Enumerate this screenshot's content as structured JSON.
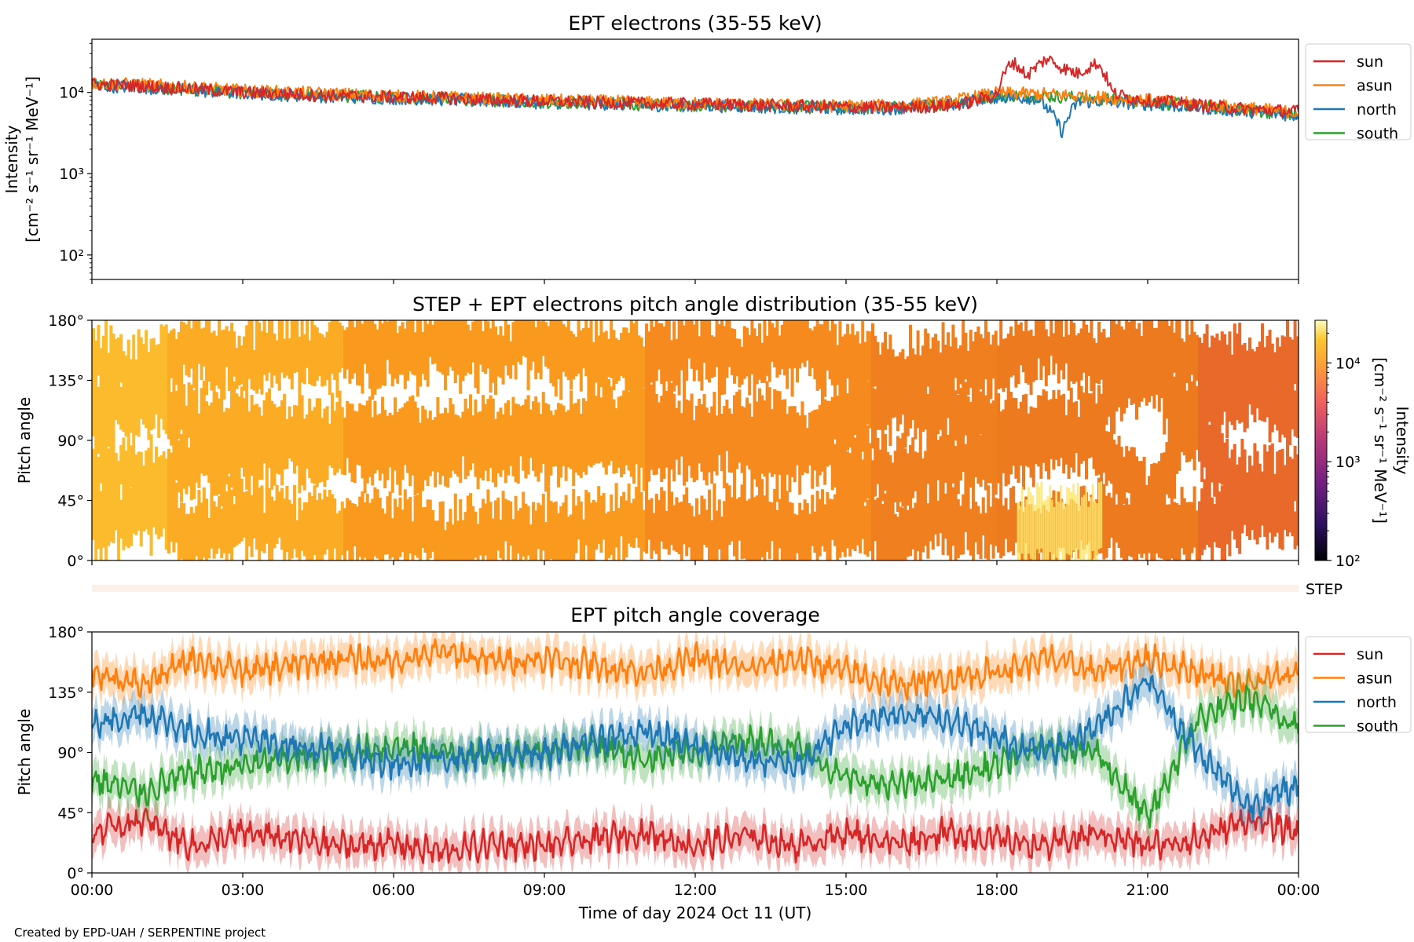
{
  "footer": "Created by EPD-UAH / SERPENTINE project",
  "colors": {
    "sun": "#d62728",
    "asun": "#ff7f0e",
    "north": "#1f77b4",
    "south": "#2ca02c"
  },
  "chart_data": [
    {
      "type": "line",
      "title": "EPT electrons (35-55 keV)",
      "ylabel_line1": "Intensity",
      "ylabel_line2": "[cm⁻² s⁻¹ sr⁻¹ MeV⁻¹]",
      "yscale": "log",
      "ylim": [
        50,
        45000
      ],
      "yticks": [
        {
          "value": 100,
          "label": "10²"
        },
        {
          "value": 1000,
          "label": "10³"
        },
        {
          "value": 10000,
          "label": "10⁴"
        }
      ],
      "xlim_hours": [
        0,
        24
      ],
      "legend": {
        "placement": "outside-right",
        "entries": [
          "sun",
          "asun",
          "north",
          "south"
        ]
      },
      "series": [
        {
          "name": "sun",
          "color": "#d62728",
          "x_hours": [
            0,
            1,
            2,
            3,
            4,
            5,
            6,
            7,
            8,
            9,
            10,
            11,
            12,
            13,
            14,
            15,
            16,
            17,
            17.5,
            18,
            18.3,
            18.6,
            19,
            19.3,
            19.6,
            20,
            20.3,
            20.6,
            21,
            22,
            23,
            24
          ],
          "y": [
            12500,
            12000,
            11000,
            10000,
            9500,
            9000,
            8800,
            8500,
            8000,
            7800,
            7500,
            7300,
            7200,
            7000,
            6800,
            6600,
            6500,
            6800,
            7600,
            9500,
            24000,
            16000,
            26000,
            20000,
            17000,
            23000,
            9800,
            8700,
            8000,
            7000,
            6200,
            5800
          ]
        },
        {
          "name": "asun",
          "color": "#ff7f0e",
          "x_hours": [
            0,
            1,
            2,
            3,
            4,
            5,
            6,
            7,
            8,
            9,
            10,
            11,
            12,
            13,
            14,
            15,
            16,
            17,
            18,
            19,
            20,
            21,
            22,
            23,
            24
          ],
          "y": [
            13000,
            12500,
            11500,
            10500,
            10000,
            9500,
            9000,
            8700,
            8300,
            8000,
            7800,
            7500,
            7300,
            7100,
            6900,
            6800,
            6900,
            7600,
            9800,
            9500,
            8700,
            8000,
            7200,
            6400,
            5600
          ]
        },
        {
          "name": "north",
          "color": "#1f77b4",
          "x_hours": [
            0,
            1,
            2,
            3,
            4,
            5,
            6,
            7,
            8,
            9,
            10,
            11,
            12,
            13,
            14,
            15,
            16,
            17,
            18,
            18.8,
            19.3,
            19.6,
            20,
            21,
            22,
            23,
            24
          ],
          "y": [
            12000,
            11500,
            10500,
            9800,
            9200,
            8800,
            8500,
            8200,
            7800,
            7500,
            7300,
            7000,
            6900,
            6700,
            6500,
            6300,
            6400,
            7000,
            8800,
            8500,
            3200,
            7500,
            7800,
            7200,
            6500,
            5800,
            5200
          ]
        },
        {
          "name": "south",
          "color": "#2ca02c",
          "x_hours": [
            0,
            1,
            2,
            3,
            4,
            5,
            6,
            7,
            8,
            9,
            10,
            11,
            12,
            13,
            14,
            15,
            16,
            17,
            18,
            19,
            20,
            21,
            22,
            23,
            24
          ],
          "y": [
            12200,
            11800,
            10800,
            10000,
            9400,
            9000,
            8600,
            8300,
            7900,
            7600,
            7400,
            7100,
            7000,
            6800,
            6600,
            6400,
            6500,
            7200,
            9200,
            9000,
            8400,
            7600,
            6800,
            6000,
            5300
          ]
        }
      ]
    },
    {
      "type": "heatmap",
      "title": "STEP + EPT electrons pitch angle distribution (35-55 keV)",
      "ylabel": "Pitch angle",
      "yticks": [
        "0°",
        "45°",
        "90°",
        "135°",
        "180°"
      ],
      "ylim_deg": [
        0,
        180
      ],
      "xlim_hours": [
        0,
        24
      ],
      "colorbar": {
        "label": "Intensity",
        "units": "[cm⁻² s⁻¹ sr⁻¹ MeV⁻¹]",
        "scale": "log",
        "range": [
          100,
          27000
        ],
        "ticks": [
          {
            "value": 100,
            "label": "10²"
          },
          {
            "value": 1000,
            "label": "10³"
          },
          {
            "value": 10000,
            "label": "10⁴"
          }
        ]
      },
      "step_label": "STEP"
    },
    {
      "type": "line",
      "title": "EPT pitch angle coverage",
      "ylabel": "Pitch angle",
      "yticks": [
        "0°",
        "45°",
        "90°",
        "135°",
        "180°"
      ],
      "ylim_deg": [
        0,
        180
      ],
      "xlim_hours": [
        0,
        24
      ],
      "xlabel": "Time of day 2024 Oct 11 (UT)",
      "xticks": [
        "00:00",
        "03:00",
        "06:00",
        "09:00",
        "12:00",
        "15:00",
        "18:00",
        "21:00",
        "00:00"
      ],
      "legend": {
        "placement": "outside-right",
        "entries": [
          "sun",
          "asun",
          "north",
          "south"
        ]
      },
      "series": [
        {
          "name": "sun",
          "color": "#d62728",
          "x_hours": [
            0,
            1,
            2,
            3,
            4,
            5,
            6,
            7,
            8,
            9,
            10,
            11,
            12,
            13,
            14,
            15,
            16,
            17,
            18,
            19,
            20,
            21,
            22,
            23,
            24
          ],
          "y": [
            30,
            40,
            20,
            30,
            25,
            20,
            22,
            15,
            22,
            20,
            25,
            30,
            20,
            28,
            20,
            30,
            22,
            30,
            25,
            20,
            30,
            20,
            25,
            40,
            30
          ]
        },
        {
          "name": "asun",
          "color": "#ff7f0e",
          "x_hours": [
            0,
            1,
            2,
            3,
            4,
            5,
            6,
            7,
            8,
            9,
            10,
            11,
            12,
            13,
            14,
            15,
            16,
            17,
            18,
            19,
            20,
            21,
            22,
            23,
            24
          ],
          "y": [
            150,
            140,
            160,
            150,
            155,
            160,
            158,
            165,
            158,
            160,
            155,
            150,
            160,
            152,
            160,
            150,
            140,
            145,
            150,
            160,
            150,
            160,
            150,
            140,
            150
          ]
        },
        {
          "name": "north",
          "color": "#1f77b4",
          "x_hours": [
            0,
            1,
            2,
            3,
            4,
            5,
            6,
            7,
            8,
            9,
            10,
            11,
            12,
            13,
            14,
            15,
            16,
            17,
            18,
            19,
            20,
            21,
            22,
            23,
            24
          ],
          "y": [
            110,
            120,
            105,
            100,
            95,
            90,
            80,
            85,
            90,
            88,
            100,
            105,
            95,
            85,
            80,
            110,
            120,
            115,
            100,
            90,
            110,
            145,
            90,
            50,
            65
          ]
        },
        {
          "name": "south",
          "color": "#2ca02c",
          "x_hours": [
            0,
            1,
            2,
            3,
            4,
            5,
            6,
            7,
            8,
            9,
            10,
            11,
            12,
            13,
            14,
            15,
            16,
            17,
            18,
            19,
            20,
            21,
            22,
            23,
            24
          ],
          "y": [
            70,
            60,
            75,
            80,
            85,
            90,
            95,
            90,
            88,
            92,
            95,
            85,
            90,
            100,
            95,
            70,
            65,
            70,
            80,
            95,
            90,
            40,
            115,
            130,
            110
          ]
        }
      ]
    }
  ]
}
